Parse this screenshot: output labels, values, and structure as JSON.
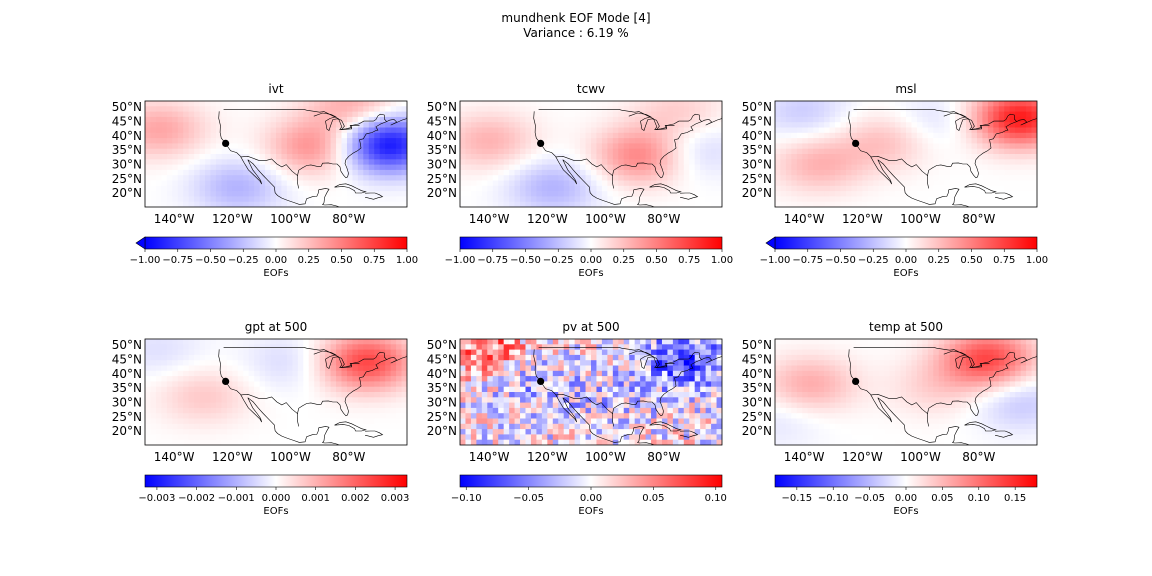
{
  "figure": {
    "title": "mundhenk EOF Mode [4]",
    "subtitle": "Variance : 6.19 %"
  },
  "colors": {
    "negative": "#0000ff",
    "neutral": "#ffffff",
    "positive": "#ff0000",
    "coast": "#000000",
    "marker": "#000000"
  },
  "chart_data": [
    {
      "type": "heatmap",
      "title": "ivt",
      "lon_ticks": [
        "140°W",
        "120°W",
        "100°W",
        "80°W"
      ],
      "lat_ticks": [
        "50°N",
        "45°N",
        "40°N",
        "35°N",
        "30°N",
        "25°N",
        "20°N"
      ],
      "colorbar": {
        "label": "EOFs",
        "ticks": [
          "−1.00",
          "−0.75",
          "−0.50",
          "−0.25",
          "0.00",
          "0.25",
          "0.50",
          "0.75",
          "1.00"
        ],
        "extend": "min"
      },
      "blobs": [
        {
          "lon": -67,
          "lat": 37,
          "v": -0.95
        },
        {
          "lon": -92,
          "lat": 36,
          "v": 0.45
        },
        {
          "lon": -145,
          "lat": 42,
          "v": 0.35
        },
        {
          "lon": -118,
          "lat": 22,
          "v": -0.3
        },
        {
          "lon": -78,
          "lat": 50,
          "v": 0.35
        }
      ]
    },
    {
      "type": "heatmap",
      "title": "tcwv",
      "lon_ticks": [
        "140°W",
        "120°W",
        "100°W",
        "80°W"
      ],
      "lat_ticks": [
        "50°N",
        "45°N",
        "40°N",
        "35°N",
        "30°N",
        "25°N",
        "20°N"
      ],
      "colorbar": {
        "label": "EOFs",
        "ticks": [
          "−1.00",
          "−0.75",
          "−0.50",
          "−0.25",
          "0.00",
          "0.25",
          "0.50",
          "0.75",
          "1.00"
        ],
        "extend": "none"
      },
      "blobs": [
        {
          "lon": -88,
          "lat": 33,
          "v": 0.5
        },
        {
          "lon": -140,
          "lat": 38,
          "v": 0.3
        },
        {
          "lon": -118,
          "lat": 22,
          "v": -0.3
        },
        {
          "lon": -70,
          "lat": 35,
          "v": -0.2
        },
        {
          "lon": -75,
          "lat": 48,
          "v": 0.2
        }
      ]
    },
    {
      "type": "heatmap",
      "title": "msl",
      "lon_ticks": [
        "140°W",
        "120°W",
        "100°W",
        "80°W"
      ],
      "lat_ticks": [
        "50°N",
        "45°N",
        "40°N",
        "35°N",
        "30°N",
        "25°N",
        "20°N"
      ],
      "colorbar": {
        "label": "EOFs",
        "ticks": [
          "−1.00",
          "−0.75",
          "−0.50",
          "−0.25",
          "0.00",
          "0.25",
          "0.50",
          "0.75",
          "1.00"
        ],
        "extend": "min"
      },
      "blobs": [
        {
          "lon": -66,
          "lat": 46,
          "v": 0.9
        },
        {
          "lon": -135,
          "lat": 30,
          "v": 0.3
        },
        {
          "lon": -112,
          "lat": 38,
          "v": 0.25
        },
        {
          "lon": -140,
          "lat": 48,
          "v": -0.2
        },
        {
          "lon": -95,
          "lat": 45,
          "v": -0.15
        }
      ]
    },
    {
      "type": "heatmap",
      "title": "gpt at 500",
      "lon_ticks": [
        "140°W",
        "120°W",
        "100°W",
        "80°W"
      ],
      "lat_ticks": [
        "50°N",
        "45°N",
        "40°N",
        "35°N",
        "30°N",
        "25°N",
        "20°N"
      ],
      "colorbar": {
        "label": "EOFs",
        "ticks": [
          "−0.003",
          "−0.002",
          "−0.001",
          "0.000",
          "0.001",
          "0.002",
          "0.003"
        ],
        "extend": "none",
        "max": 0.0033
      },
      "blobs": [
        {
          "lon": -74,
          "lat": 44,
          "v": 0.0024
        },
        {
          "lon": -130,
          "lat": 32,
          "v": 0.0007
        },
        {
          "lon": -100,
          "lat": 44,
          "v": -0.0005
        },
        {
          "lon": -145,
          "lat": 48,
          "v": -0.0004
        }
      ]
    },
    {
      "type": "heatmap",
      "title": "pv at 500",
      "lon_ticks": [
        "140°W",
        "120°W",
        "100°W",
        "80°W"
      ],
      "lat_ticks": [
        "50°N",
        "45°N",
        "40°N",
        "35°N",
        "30°N",
        "25°N",
        "20°N"
      ],
      "colorbar": {
        "label": "EOFs",
        "ticks": [
          "−0.10",
          "−0.05",
          "0.00",
          "0.05",
          "0.10"
        ],
        "extend": "none",
        "max": 0.105
      },
      "noise": 0.05,
      "blobs": [
        {
          "lon": -72,
          "lat": 44,
          "v": -0.07
        },
        {
          "lon": -140,
          "lat": 48,
          "v": 0.06
        },
        {
          "lon": -100,
          "lat": 30,
          "v": -0.02
        },
        {
          "lon": -128,
          "lat": 38,
          "v": -0.03
        }
      ]
    },
    {
      "type": "heatmap",
      "title": "temp at 500",
      "lon_ticks": [
        "140°W",
        "120°W",
        "100°W",
        "80°W"
      ],
      "lat_ticks": [
        "50°N",
        "45°N",
        "40°N",
        "35°N",
        "30°N",
        "25°N",
        "20°N"
      ],
      "colorbar": {
        "label": "EOFs",
        "ticks": [
          "−0.15",
          "−0.10",
          "−0.05",
          "0.00",
          "0.05",
          "0.10",
          "0.15"
        ],
        "extend": "none",
        "max": 0.18
      },
      "blobs": [
        {
          "lon": -77,
          "lat": 45,
          "v": 0.13
        },
        {
          "lon": -138,
          "lat": 36,
          "v": 0.06
        },
        {
          "lon": -95,
          "lat": 35,
          "v": 0.03
        },
        {
          "lon": -66,
          "lat": 30,
          "v": -0.04
        },
        {
          "lon": -148,
          "lat": 24,
          "v": -0.02
        }
      ]
    }
  ]
}
